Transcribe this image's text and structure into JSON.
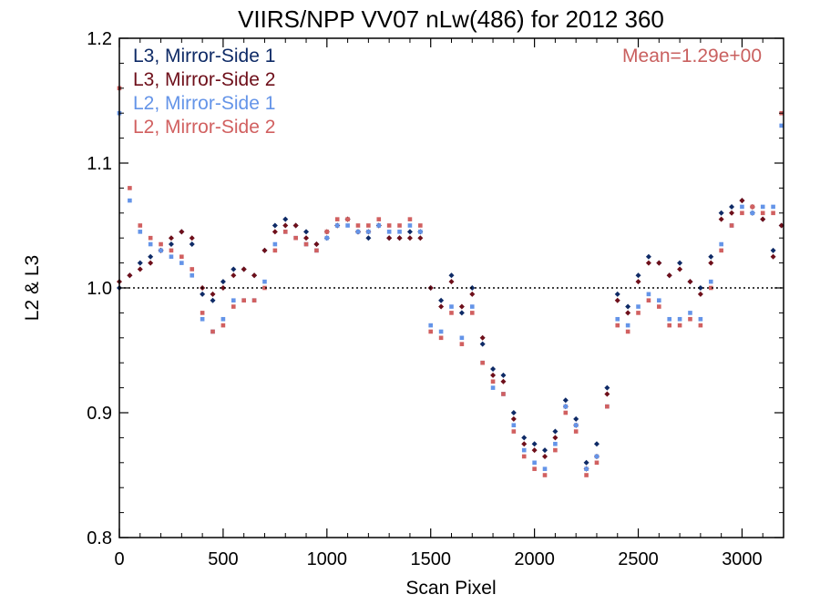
{
  "chart_data": {
    "type": "scatter",
    "title": "VIIRS/NPP VV07 nLw(486) for 2012 360",
    "xlabel": "Scan Pixel",
    "ylabel": "L2 & L3",
    "xlim": [
      0,
      3200
    ],
    "ylim": [
      0.8,
      1.2
    ],
    "x_ticks": [
      0,
      500,
      1000,
      1500,
      2000,
      2500,
      3000
    ],
    "y_ticks": [
      0.8,
      0.9,
      1.0,
      1.1,
      1.2
    ],
    "x_tick_labels": [
      "0",
      "500",
      "1000",
      "1500",
      "2000",
      "2500",
      "3000"
    ],
    "y_tick_labels": [
      "0.8",
      "0.9",
      "1.0",
      "1.1",
      "1.2"
    ],
    "reference_line": 1.0,
    "annotation": "Mean=1.29e+00",
    "annotation_color": "#c9605f",
    "legend_position": "top-left",
    "grid": false,
    "series": [
      {
        "name": "L3, Mirror-Side 1",
        "color": "#0e2a66",
        "marker": "diamond",
        "x": [
          0,
          50,
          100,
          150,
          200,
          250,
          300,
          350,
          400,
          450,
          500,
          550,
          600,
          650,
          700,
          750,
          800,
          850,
          900,
          950,
          1000,
          1050,
          1100,
          1150,
          1200,
          1250,
          1300,
          1350,
          1400,
          1450,
          1500,
          1550,
          1600,
          1650,
          1700,
          1750,
          1800,
          1850,
          1900,
          1950,
          2000,
          2050,
          2100,
          2150,
          2200,
          2250,
          2300,
          2350,
          2400,
          2450,
          2500,
          2550,
          2600,
          2650,
          2700,
          2750,
          2800,
          2850,
          2900,
          2950,
          3000,
          3050,
          3100,
          3150,
          3190
        ],
        "values": [
          1.0,
          1.01,
          1.02,
          1.025,
          1.03,
          1.035,
          1.045,
          1.035,
          0.995,
          0.99,
          1.005,
          1.015,
          1.015,
          1.01,
          1.03,
          1.05,
          1.055,
          1.05,
          1.045,
          1.035,
          1.04,
          1.05,
          1.055,
          1.045,
          1.04,
          1.05,
          1.04,
          1.04,
          1.045,
          1.045,
          1.0,
          0.99,
          1.01,
          0.98,
          1.0,
          0.955,
          0.935,
          0.93,
          0.9,
          0.88,
          0.875,
          0.87,
          0.885,
          0.91,
          0.895,
          0.86,
          0.875,
          0.92,
          0.995,
          0.985,
          1.01,
          1.025,
          1.02,
          1.01,
          1.02,
          1.005,
          1.0,
          1.025,
          1.06,
          1.065,
          1.07,
          1.06,
          1.055,
          1.03,
          1.05
        ]
      },
      {
        "name": "L3, Mirror-Side 2",
        "color": "#6e0f1a",
        "marker": "diamond",
        "x": [
          0,
          50,
          100,
          150,
          200,
          250,
          300,
          350,
          400,
          450,
          500,
          550,
          600,
          650,
          700,
          750,
          800,
          850,
          900,
          950,
          1000,
          1050,
          1100,
          1150,
          1200,
          1250,
          1300,
          1350,
          1400,
          1450,
          1500,
          1550,
          1600,
          1650,
          1700,
          1750,
          1800,
          1850,
          1900,
          1950,
          2000,
          2050,
          2100,
          2150,
          2200,
          2250,
          2300,
          2350,
          2400,
          2450,
          2500,
          2550,
          2600,
          2650,
          2700,
          2750,
          2800,
          2850,
          2900,
          2950,
          3000,
          3050,
          3100,
          3150,
          3190
        ],
        "values": [
          1.005,
          1.01,
          1.015,
          1.02,
          1.03,
          1.04,
          1.045,
          1.04,
          1.0,
          0.995,
          1.0,
          1.01,
          1.015,
          1.01,
          1.03,
          1.045,
          1.05,
          1.05,
          1.04,
          1.035,
          1.045,
          1.05,
          1.055,
          1.045,
          1.045,
          1.05,
          1.04,
          1.04,
          1.04,
          1.04,
          1.0,
          0.985,
          1.005,
          0.985,
          0.995,
          0.96,
          0.93,
          0.925,
          0.895,
          0.875,
          0.87,
          0.865,
          0.88,
          0.905,
          0.89,
          0.855,
          0.865,
          0.915,
          0.99,
          0.98,
          1.005,
          1.02,
          1.02,
          1.01,
          1.015,
          1.005,
          0.995,
          1.02,
          1.055,
          1.06,
          1.07,
          1.065,
          1.055,
          1.025,
          1.05
        ]
      },
      {
        "name": "L2, Mirror-Side 1",
        "color": "#6494e8",
        "marker": "square",
        "x": [
          0,
          50,
          100,
          150,
          200,
          250,
          300,
          350,
          400,
          450,
          500,
          550,
          600,
          650,
          700,
          750,
          800,
          850,
          900,
          950,
          1000,
          1050,
          1100,
          1150,
          1200,
          1250,
          1300,
          1350,
          1400,
          1450,
          1500,
          1550,
          1600,
          1650,
          1700,
          1750,
          1800,
          1850,
          1900,
          1950,
          2000,
          2050,
          2100,
          2150,
          2200,
          2250,
          2300,
          2350,
          2400,
          2450,
          2500,
          2550,
          2600,
          2650,
          2700,
          2750,
          2800,
          2850,
          2900,
          2950,
          3000,
          3050,
          3100,
          3150,
          3190
        ],
        "values": [
          1.14,
          1.07,
          1.045,
          1.035,
          1.03,
          1.025,
          1.02,
          1.01,
          0.975,
          0.965,
          0.975,
          0.99,
          0.99,
          0.99,
          1.005,
          1.035,
          1.045,
          1.04,
          1.035,
          1.03,
          1.04,
          1.05,
          1.05,
          1.045,
          1.045,
          1.05,
          1.045,
          1.045,
          1.05,
          1.045,
          0.97,
          0.965,
          0.985,
          0.96,
          0.985,
          0.94,
          0.92,
          0.915,
          0.89,
          0.87,
          0.86,
          0.855,
          0.875,
          0.905,
          0.89,
          0.855,
          0.865,
          0.905,
          0.975,
          0.97,
          0.985,
          0.995,
          0.99,
          0.975,
          0.975,
          0.98,
          0.975,
          1.005,
          1.035,
          1.05,
          1.065,
          1.06,
          1.065,
          1.065,
          1.13
        ]
      },
      {
        "name": "L2, Mirror-Side 2",
        "color": "#d16060",
        "marker": "square",
        "x": [
          0,
          50,
          100,
          150,
          200,
          250,
          300,
          350,
          400,
          450,
          500,
          550,
          600,
          650,
          700,
          750,
          800,
          850,
          900,
          950,
          1000,
          1050,
          1100,
          1150,
          1200,
          1250,
          1300,
          1350,
          1400,
          1450,
          1500,
          1550,
          1600,
          1650,
          1700,
          1750,
          1800,
          1850,
          1900,
          1950,
          2000,
          2050,
          2100,
          2150,
          2200,
          2250,
          2300,
          2350,
          2400,
          2450,
          2500,
          2550,
          2600,
          2650,
          2700,
          2750,
          2800,
          2850,
          2900,
          2950,
          3000,
          3050,
          3100,
          3150,
          3190
        ],
        "values": [
          1.16,
          1.08,
          1.05,
          1.04,
          1.035,
          1.03,
          1.025,
          1.015,
          0.98,
          0.965,
          0.97,
          0.985,
          0.99,
          0.99,
          1.0,
          1.03,
          1.045,
          1.04,
          1.035,
          1.03,
          1.045,
          1.055,
          1.055,
          1.05,
          1.05,
          1.055,
          1.05,
          1.05,
          1.055,
          1.05,
          0.965,
          0.96,
          0.98,
          0.955,
          0.98,
          0.94,
          0.925,
          0.915,
          0.885,
          0.865,
          0.855,
          0.85,
          0.87,
          0.9,
          0.885,
          0.85,
          0.86,
          0.905,
          0.97,
          0.965,
          0.98,
          0.99,
          0.985,
          0.97,
          0.97,
          0.975,
          0.97,
          1.0,
          1.03,
          1.05,
          1.06,
          1.065,
          1.06,
          1.06,
          1.14
        ]
      }
    ]
  }
}
